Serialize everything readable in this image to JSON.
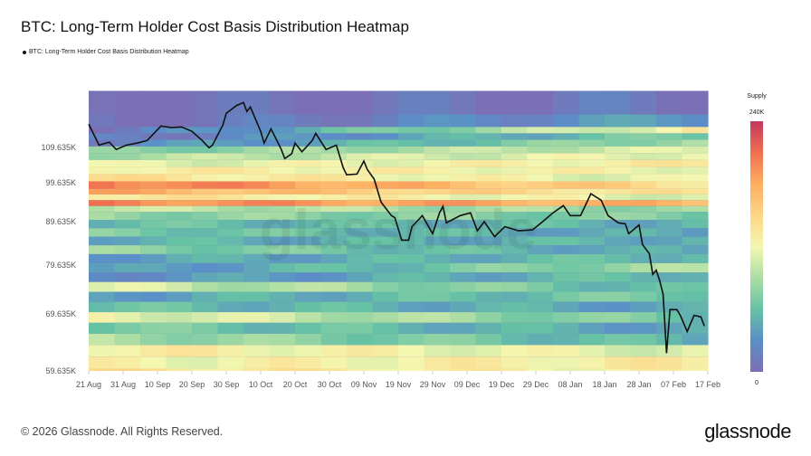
{
  "title": "BTC: Long-Term Holder Cost Basis Distribution Heatmap",
  "footer": "© 2026 Glassnode. All Rights Reserved.",
  "logo": "glassnode",
  "watermark": "glassnode",
  "chart_data": {
    "type": "heatmap",
    "title": "BTC: Long-Term Holder Cost Basis Distribution Heatmap",
    "legend": [
      {
        "name": "BTC: Long-Term Holder Cost Basis Distribution Heatmap",
        "color": "#111111",
        "placement": "top-left"
      }
    ],
    "xlim": [
      "2025-08-21",
      "2026-02-17"
    ],
    "x_ticks": [
      "21 Aug",
      "31 Aug",
      "10 Sep",
      "20 Sep",
      "30 Sep",
      "10 Oct",
      "20 Oct",
      "30 Oct",
      "09 Nov",
      "19 Nov",
      "29 Nov",
      "09 Dec",
      "19 Dec",
      "29 Dec",
      "08 Jan",
      "18 Jan",
      "28 Jan",
      "07 Feb",
      "17 Feb"
    ],
    "y_scale": "log",
    "ylim": [
      59.635,
      127.5
    ],
    "y_ticks": [
      {
        "value": 59.635,
        "label": "59.635K"
      },
      {
        "value": 69.635,
        "label": "69.635K"
      },
      {
        "value": 79.635,
        "label": "79.635K"
      },
      {
        "value": 89.635,
        "label": "89.635K"
      },
      {
        "value": 99.635,
        "label": "99.635K"
      },
      {
        "value": 109.635,
        "label": "109.635K"
      }
    ],
    "colorbar": {
      "label": "Supply",
      "min_label": "0",
      "max_label": "240K",
      "min": 0,
      "max": 240,
      "colors": [
        "#7b6fb5",
        "#5a8fc8",
        "#66c2a5",
        "#abdda4",
        "#f4f7b0",
        "#fdd586",
        "#fdae61",
        "#f07050",
        "#c2375f"
      ]
    },
    "price_series_color": "#111111",
    "price_series": [
      [
        "2025-08-21",
        116.9
      ],
      [
        "2025-08-24",
        110.4
      ],
      [
        "2025-08-27",
        111.3
      ],
      [
        "2025-08-29",
        109.1
      ],
      [
        "2025-09-01",
        110.4
      ],
      [
        "2025-09-04",
        111.0
      ],
      [
        "2025-09-07",
        111.8
      ],
      [
        "2025-09-11",
        116.3
      ],
      [
        "2025-09-14",
        115.8
      ],
      [
        "2025-09-17",
        116.0
      ],
      [
        "2025-09-20",
        114.6
      ],
      [
        "2025-09-23",
        111.8
      ],
      [
        "2025-09-25",
        109.6
      ],
      [
        "2025-09-26",
        110.4
      ],
      [
        "2025-09-29",
        116.6
      ],
      [
        "2025-09-30",
        120.4
      ],
      [
        "2025-10-03",
        123.0
      ],
      [
        "2025-10-05",
        124.0
      ],
      [
        "2025-10-06",
        121.0
      ],
      [
        "2025-10-07",
        122.5
      ],
      [
        "2025-10-10",
        114.6
      ],
      [
        "2025-10-11",
        111.0
      ],
      [
        "2025-10-13",
        115.4
      ],
      [
        "2025-10-16",
        109.1
      ],
      [
        "2025-10-17",
        106.4
      ],
      [
        "2025-10-19",
        107.8
      ],
      [
        "2025-10-20",
        111.0
      ],
      [
        "2025-10-22",
        108.4
      ],
      [
        "2025-10-25",
        111.8
      ],
      [
        "2025-10-26",
        114.0
      ],
      [
        "2025-10-29",
        109.1
      ],
      [
        "2025-11-01",
        110.4
      ],
      [
        "2025-11-03",
        103.8
      ],
      [
        "2025-11-04",
        101.8
      ],
      [
        "2025-11-07",
        102.0
      ],
      [
        "2025-11-09",
        105.7
      ],
      [
        "2025-11-10",
        103.3
      ],
      [
        "2025-11-12",
        100.6
      ],
      [
        "2025-11-14",
        94.5
      ],
      [
        "2025-11-17",
        91.1
      ],
      [
        "2025-11-18",
        90.6
      ],
      [
        "2025-11-20",
        85.2
      ],
      [
        "2025-11-22",
        85.2
      ],
      [
        "2025-11-23",
        88.4
      ],
      [
        "2025-11-26",
        91.1
      ],
      [
        "2025-11-29",
        86.7
      ],
      [
        "2025-12-01",
        91.8
      ],
      [
        "2025-12-02",
        93.4
      ],
      [
        "2025-12-03",
        89.3
      ],
      [
        "2025-12-07",
        91.1
      ],
      [
        "2025-12-10",
        91.8
      ],
      [
        "2025-12-12",
        87.4
      ],
      [
        "2025-12-14",
        89.6
      ],
      [
        "2025-12-17",
        86.0
      ],
      [
        "2025-12-20",
        88.4
      ],
      [
        "2025-12-24",
        87.4
      ],
      [
        "2025-12-28",
        87.6
      ],
      [
        "2025-12-31",
        89.6
      ],
      [
        "2026-01-03",
        91.8
      ],
      [
        "2026-01-06",
        93.6
      ],
      [
        "2026-01-08",
        91.1
      ],
      [
        "2026-01-11",
        91.1
      ],
      [
        "2026-01-14",
        96.7
      ],
      [
        "2026-01-17",
        95.0
      ],
      [
        "2026-01-19",
        91.1
      ],
      [
        "2026-01-22",
        89.3
      ],
      [
        "2026-01-24",
        89.1
      ],
      [
        "2026-01-25",
        86.7
      ],
      [
        "2026-01-28",
        88.8
      ],
      [
        "2026-01-29",
        84.2
      ],
      [
        "2026-01-31",
        82.1
      ],
      [
        "2026-02-01",
        77.6
      ],
      [
        "2026-02-02",
        78.5
      ],
      [
        "2026-02-03",
        76.3
      ],
      [
        "2026-02-04",
        73.5
      ],
      [
        "2026-02-05",
        62.6
      ],
      [
        "2026-02-06",
        70.5
      ],
      [
        "2026-02-08",
        70.5
      ],
      [
        "2026-02-09",
        69.4
      ],
      [
        "2026-02-11",
        66.4
      ],
      [
        "2026-02-13",
        69.4
      ],
      [
        "2026-02-15",
        69.1
      ],
      [
        "2026-02-16",
        67.4
      ]
    ],
    "supply_bands": [
      [
        120,
        128,
        0,
        10
      ],
      [
        116,
        120,
        0,
        40
      ],
      [
        114,
        116,
        5,
        130
      ],
      [
        112,
        114,
        10,
        70
      ],
      [
        110,
        112,
        20,
        90
      ],
      [
        108,
        110,
        70,
        110
      ],
      [
        106,
        108,
        90,
        120
      ],
      [
        104,
        106,
        110,
        130
      ],
      [
        102,
        104,
        130,
        120
      ],
      [
        100,
        102,
        140,
        110
      ],
      [
        98,
        100,
        210,
        140
      ],
      [
        96.5,
        98,
        180,
        130
      ],
      [
        95,
        96.5,
        140,
        110
      ],
      [
        93.5,
        95,
        200,
        170
      ],
      [
        92,
        93.5,
        100,
        80
      ],
      [
        90,
        92,
        80,
        70
      ],
      [
        88,
        90,
        60,
        50
      ],
      [
        86,
        88,
        70,
        40
      ],
      [
        84,
        86,
        50,
        50
      ],
      [
        82,
        84,
        80,
        40
      ],
      [
        80,
        82,
        40,
        60
      ],
      [
        78,
        80,
        30,
        90
      ],
      [
        76,
        78,
        30,
        60
      ],
      [
        74,
        76,
        110,
        50
      ],
      [
        72,
        74,
        40,
        70
      ],
      [
        70,
        72,
        60,
        40
      ],
      [
        68,
        70,
        120,
        60
      ],
      [
        66,
        68,
        70,
        40
      ],
      [
        64,
        66,
        90,
        50
      ],
      [
        62,
        64,
        130,
        110
      ],
      [
        60,
        62,
        120,
        130
      ],
      [
        59.635,
        60,
        140,
        120
      ]
    ]
  }
}
